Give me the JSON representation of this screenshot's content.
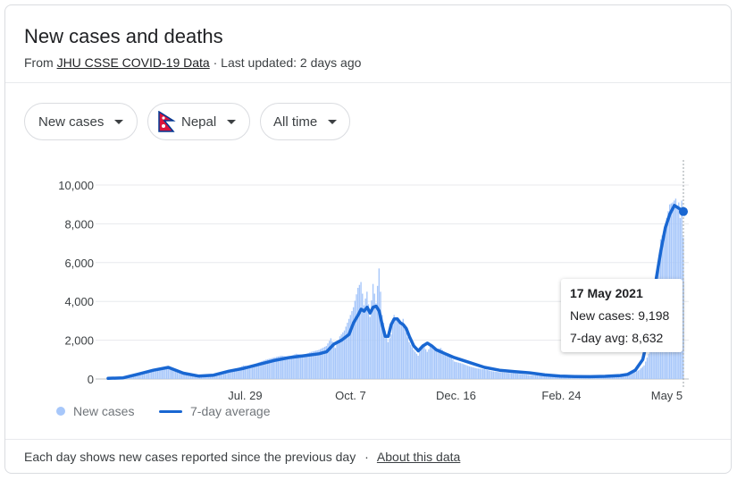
{
  "header": {
    "title": "New cases and deaths",
    "source_prefix": "From",
    "source_link": "JHU CSSE COVID-19 Data",
    "updated": "· Last updated: 2 days ago"
  },
  "filters": {
    "metric": "New cases",
    "country": "Nepal",
    "range": "All time"
  },
  "legend": {
    "bars": "New cases",
    "line": "7-day average"
  },
  "tooltip": {
    "date": "17 May 2021",
    "new_cases": "New cases: 9,198",
    "avg": "7-day avg: 8,632"
  },
  "footer": {
    "note": "Each day shows new cases reported since the previous day",
    "sep": "·",
    "link": "About this data"
  },
  "colors": {
    "bars": "#a7c7fa",
    "line": "#1967d2",
    "grid": "#e8eaed"
  },
  "chart_data": {
    "type": "bar",
    "title": "New cases and deaths",
    "ylim": [
      0,
      10000
    ],
    "yticks": [
      0,
      2000,
      4000,
      6000,
      8000,
      10000
    ],
    "ytick_labels": [
      "0",
      "2,000",
      "4,000",
      "6,000",
      "8,000",
      "10,000"
    ],
    "xtick_labels": [
      "Jul. 29",
      "Oct. 7",
      "Dec. 16",
      "Feb. 24",
      "May 5"
    ],
    "xtick_days": [
      91,
      161,
      231,
      301,
      371
    ],
    "grid": true,
    "legend_position": "bottom-left",
    "daily_series": {
      "name": "New cases",
      "days": [
        0,
        10,
        20,
        30,
        40,
        50,
        60,
        70,
        80,
        85,
        90,
        95,
        100,
        105,
        110,
        115,
        120,
        125,
        130,
        135,
        140,
        145,
        148,
        151,
        154,
        157,
        160,
        163,
        166,
        168,
        170,
        172,
        174,
        176,
        178,
        180,
        182,
        184,
        186,
        188,
        190,
        192,
        194,
        196,
        198,
        200,
        203,
        206,
        209,
        212,
        215,
        218,
        221,
        224,
        227,
        230,
        235,
        240,
        245,
        250,
        255,
        260,
        265,
        270,
        280,
        290,
        300,
        310,
        320,
        330,
        340,
        345,
        350,
        353,
        356,
        359,
        361,
        363,
        365,
        367,
        369,
        371,
        373,
        375,
        377,
        378,
        379,
        380,
        381,
        382
      ],
      "values": [
        30,
        60,
        300,
        500,
        600,
        250,
        150,
        250,
        450,
        500,
        700,
        650,
        850,
        1000,
        1100,
        1200,
        1150,
        1300,
        1250,
        1400,
        1500,
        1700,
        2100,
        1600,
        2200,
        2500,
        3100,
        3700,
        4700,
        5000,
        3800,
        4500,
        3200,
        4900,
        3900,
        5700,
        3300,
        2500,
        1900,
        2300,
        3300,
        3000,
        2800,
        3100,
        2400,
        1900,
        1500,
        1200,
        1800,
        1400,
        1800,
        1500,
        1600,
        1300,
        1200,
        900,
        800,
        650,
        550,
        500,
        400,
        350,
        320,
        300,
        200,
        160,
        140,
        130,
        120,
        150,
        180,
        240,
        350,
        480,
        700,
        1300,
        2200,
        3600,
        5600,
        7200,
        7600,
        8300,
        9000,
        9100,
        9300,
        8800,
        9100,
        8300,
        9198,
        7300
      ]
    },
    "series": [
      {
        "name": "7-day average",
        "days": [
          0,
          10,
          20,
          30,
          40,
          50,
          60,
          70,
          80,
          90,
          100,
          110,
          120,
          130,
          140,
          145,
          150,
          155,
          160,
          163,
          166,
          168,
          170,
          172,
          174,
          176,
          178,
          180,
          182,
          184,
          186,
          188,
          190,
          192,
          194,
          196,
          198,
          200,
          203,
          206,
          209,
          212,
          215,
          218,
          221,
          224,
          227,
          230,
          240,
          250,
          260,
          270,
          280,
          290,
          300,
          310,
          320,
          330,
          340,
          345,
          350,
          355,
          358,
          361,
          364,
          367,
          370,
          373,
          376,
          379,
          382
        ],
        "values": [
          30,
          60,
          250,
          450,
          600,
          300,
          150,
          200,
          400,
          550,
          750,
          950,
          1100,
          1200,
          1300,
          1400,
          1800,
          2000,
          2300,
          2900,
          3300,
          3600,
          3500,
          3700,
          3400,
          3700,
          3750,
          3500,
          2800,
          2200,
          2200,
          2800,
          3100,
          3100,
          2900,
          2800,
          2600,
          2200,
          1700,
          1450,
          1700,
          1850,
          1700,
          1500,
          1400,
          1300,
          1200,
          1100,
          850,
          600,
          450,
          380,
          320,
          210,
          150,
          130,
          120,
          140,
          180,
          240,
          450,
          1000,
          2000,
          3500,
          5200,
          6600,
          7800,
          8500,
          8950,
          8800,
          8632
        ]
      }
    ]
  }
}
